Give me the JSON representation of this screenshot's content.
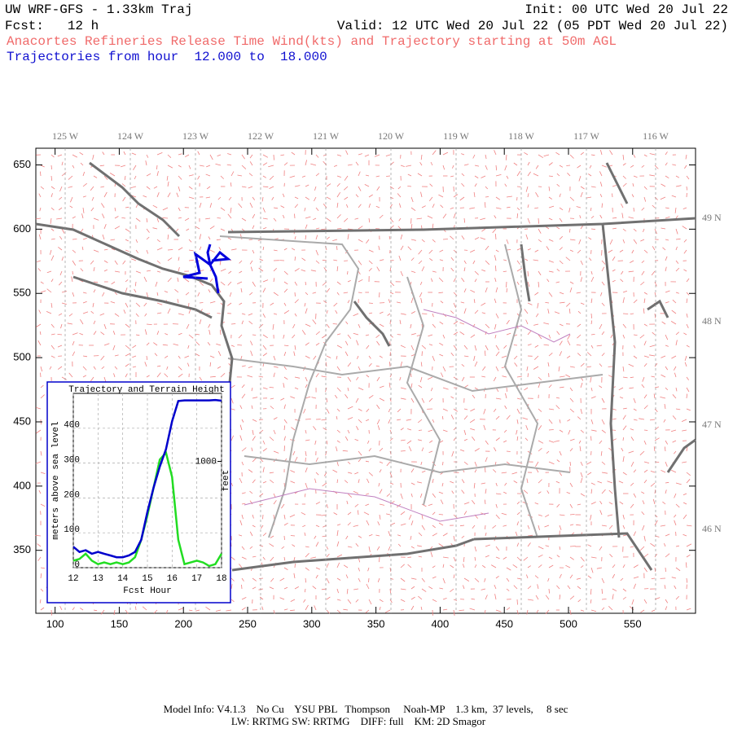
{
  "header": {
    "title": "UW WRF-GFS - 1.33km Traj",
    "init": "Init: 00 UTC Wed 20 Jul 22",
    "forecast": "Fcst:   12 h",
    "valid": "Valid: 12 UTC Wed 20 Jul 22 (05 PDT Wed 20 Jul 22)",
    "description": "Anacortes Refineries Release Time Wind(kts) and Trajectory starting at 50m AGL",
    "trajectory_range": "Trajectories from hour  12.000 to  18.000"
  },
  "map": {
    "xlim": [
      85,
      599
    ],
    "ylim": [
      301,
      663
    ],
    "xticks": [
      100,
      150,
      200,
      250,
      300,
      350,
      400,
      450,
      500,
      550
    ],
    "yticks": [
      350,
      400,
      450,
      500,
      550,
      600,
      650
    ],
    "lon_labels": [
      "125 W",
      "124 W",
      "123 W",
      "122 W",
      "121 W",
      "120 W",
      "119 W",
      "118 W",
      "117 W",
      "116 W"
    ],
    "lat_labels": [
      "49 N",
      "48 N",
      "47 N",
      "46 N"
    ]
  },
  "chart_data": {
    "type": "line",
    "title": "Trajectory and Terrain Height",
    "xlabel": "Fcst Hour",
    "ylabel": "meters above sea level",
    "y2label": "feet",
    "x": [
      12,
      12.25,
      12.5,
      12.75,
      13,
      13.25,
      13.5,
      13.75,
      14,
      14.25,
      14.5,
      14.75,
      15,
      15.25,
      15.5,
      15.75,
      16,
      16.25,
      16.5,
      16.75,
      17,
      17.25,
      17.5,
      17.75,
      18
    ],
    "series": [
      {
        "color": "#0000cc",
        "values": [
          60,
          45,
          50,
          40,
          45,
          40,
          35,
          30,
          30,
          35,
          45,
          80,
          160,
          230,
          290,
          340,
          420,
          478,
          480,
          480,
          480,
          480,
          480,
          481,
          479
        ]
      },
      {
        "color": "#22dd22",
        "values": [
          20,
          25,
          40,
          20,
          10,
          15,
          10,
          15,
          10,
          15,
          30,
          80,
          150,
          230,
          310,
          330,
          260,
          80,
          10,
          15,
          20,
          15,
          5,
          10,
          40
        ]
      }
    ],
    "xlim": [
      12,
      18
    ],
    "ylim": [
      0,
      500
    ],
    "xticks": [
      12,
      13,
      14,
      15,
      16,
      17,
      18
    ],
    "yticks": [
      0,
      100,
      200,
      300,
      400
    ],
    "y2lim": [
      0,
      1640
    ],
    "y2ticks": [
      1000
    ],
    "grid": true
  },
  "footer": {
    "line1": "Model Info: V4.1.3    No Cu    YSU PBL   Thompson     Noah-MP    1.3 km,  37 levels,     8 sec",
    "line2": "LW: RRTMG SW: RRTMG    DIFF: full    KM: 2D Smagor"
  }
}
